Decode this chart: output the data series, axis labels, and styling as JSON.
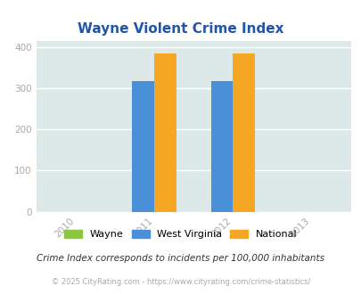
{
  "title": "Wayne Violent Crime Index",
  "title_color": "#2255aa",
  "years": [
    2010,
    2011,
    2012,
    2013
  ],
  "x_tick_labels": [
    "2010",
    "2011",
    "2012",
    "2013"
  ],
  "xlim": [
    2009.5,
    2013.5
  ],
  "ylim": [
    0,
    415
  ],
  "yticks": [
    0,
    100,
    200,
    300,
    400
  ],
  "bar_width": 0.28,
  "wv_values": [
    317,
    317
  ],
  "national_values": [
    385,
    385
  ],
  "wayne_color": "#8dc63f",
  "wv_color": "#4a90d9",
  "national_color": "#f5a623",
  "bg_color": "#dce9e8",
  "legend_labels": [
    "Wayne",
    "West Virginia",
    "National"
  ],
  "note_text": "Crime Index corresponds to incidents per 100,000 inhabitants",
  "note_color": "#333333",
  "footer_text": "© 2025 CityRating.com - https://www.cityrating.com/crime-statistics/",
  "footer_color": "#aaaaaa",
  "grid_color": "#ffffff",
  "tick_color": "#aaaaaa",
  "years_with_data": [
    2011,
    2012
  ]
}
